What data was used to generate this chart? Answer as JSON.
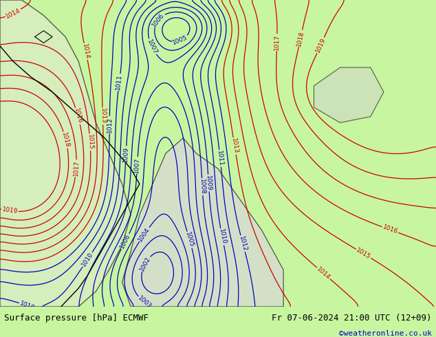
{
  "title_left": "Surface pressure [hPa] ECMWF",
  "title_right": "Fr 07-06-2024 21:00 UTC (12+09)",
  "credit": "©weatheronline.co.uk",
  "bg_color": "#c8f5a0",
  "fig_width": 6.34,
  "fig_height": 4.9,
  "dpi": 100,
  "bottom_bar_color": "#c8f5a0",
  "contour_color_blue": "#0000bb",
  "contour_color_red": "#cc0000",
  "contour_color_black": "#000000",
  "text_color_left": "#000000",
  "text_color_right": "#000000",
  "text_color_credit": "#0000cc",
  "font_size_label": 9,
  "font_size_credit": 8,
  "land_color": "#e8e8e8",
  "land_color2": "#ffffff"
}
